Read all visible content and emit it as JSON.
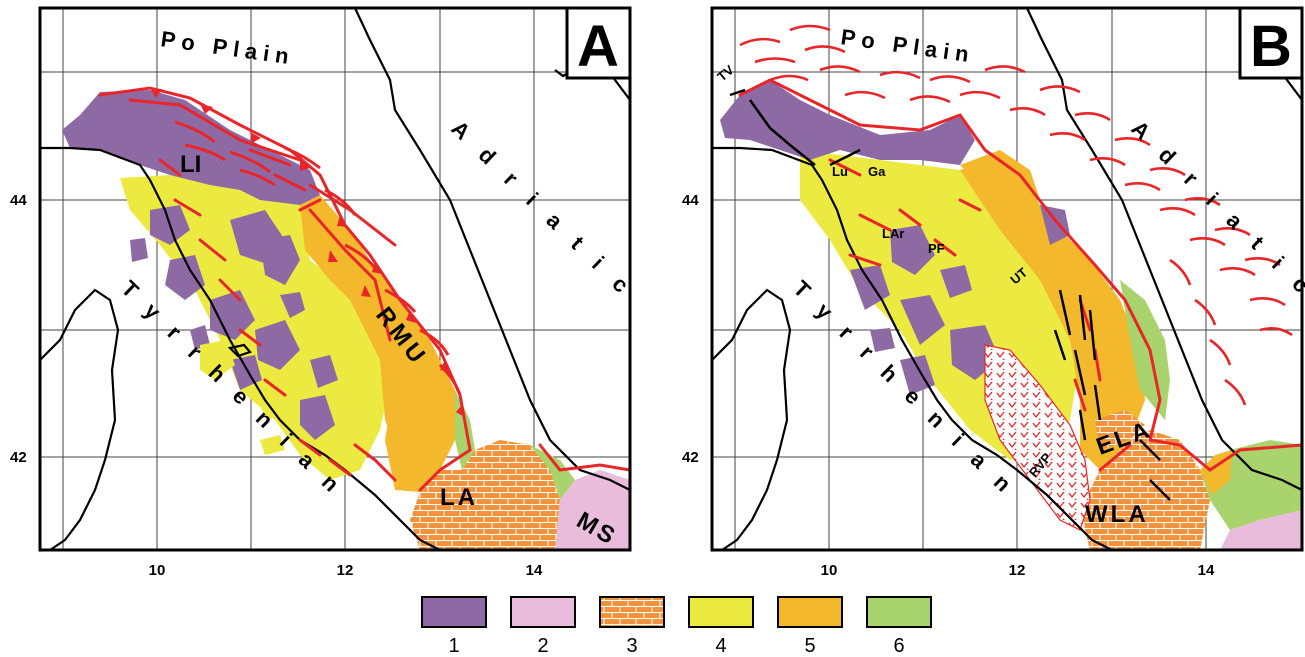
{
  "colors": {
    "unit1": "#8e6aa5",
    "unit2": "#e9bcdc",
    "unit3": "#f2923a",
    "unit4": "#ecea40",
    "unit5": "#f3b82b",
    "unit6": "#a9d36c",
    "thrust": "#e8262a",
    "frame": "#000000"
  },
  "panels": [
    {
      "letter": "A",
      "geo_labels": {
        "po_plain": "Po Plain",
        "adriatic": "Adriatic",
        "tyrrhenian": "Tyrrhenian"
      },
      "unit_labels": {
        "li": "LI",
        "rmu": "RMU",
        "la": "LA",
        "ms": "MS"
      },
      "x_ticks": [
        "10",
        "12",
        "14"
      ],
      "y_ticks": [
        "44",
        "42"
      ]
    },
    {
      "letter": "B",
      "geo_labels": {
        "po_plain": "Po Plain",
        "adriatic": "Adriatic",
        "tyrrhenian": "Tyrrhenian"
      },
      "unit_labels": {
        "ela": "ELA",
        "wla": "WLA"
      },
      "small_labels": {
        "tv": "TV",
        "lu": "Lu",
        "ga": "Ga",
        "lar": "LAr",
        "pf": "PF",
        "ut": "UT",
        "rvp": "RVP"
      },
      "x_ticks": [
        "10",
        "12",
        "14"
      ],
      "y_ticks": [
        "44",
        "42"
      ]
    }
  ],
  "legend": [
    {
      "label": "1",
      "color": "#8e6aa5",
      "pattern": "solid"
    },
    {
      "label": "2",
      "color": "#e9bcdc",
      "pattern": "solid"
    },
    {
      "label": "3",
      "color": "#f2923a",
      "pattern": "brick"
    },
    {
      "label": "4",
      "color": "#ecea40",
      "pattern": "solid"
    },
    {
      "label": "5",
      "color": "#f3b82b",
      "pattern": "solid"
    },
    {
      "label": "6",
      "color": "#a9d36c",
      "pattern": "solid"
    }
  ]
}
